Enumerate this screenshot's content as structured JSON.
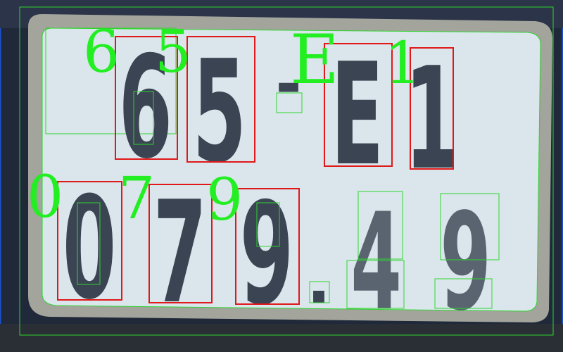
{
  "plate": {
    "line1": {
      "chars": [
        "6",
        "5",
        "E",
        "1"
      ],
      "separator": "-"
    },
    "line2": {
      "chars": [
        "0",
        "7",
        "9",
        "4",
        "9"
      ],
      "separator": "."
    }
  },
  "ocr_labels": [
    "6",
    "5",
    "E",
    "1",
    "0",
    "7",
    "9"
  ],
  "colors": {
    "plate_background": "#d9e6ec",
    "plate_frame": "#9a9a92",
    "character": "#3a4452",
    "detection_box": "#e01818",
    "contour": "#2ed52e",
    "ocr_label": "#22ee22"
  }
}
